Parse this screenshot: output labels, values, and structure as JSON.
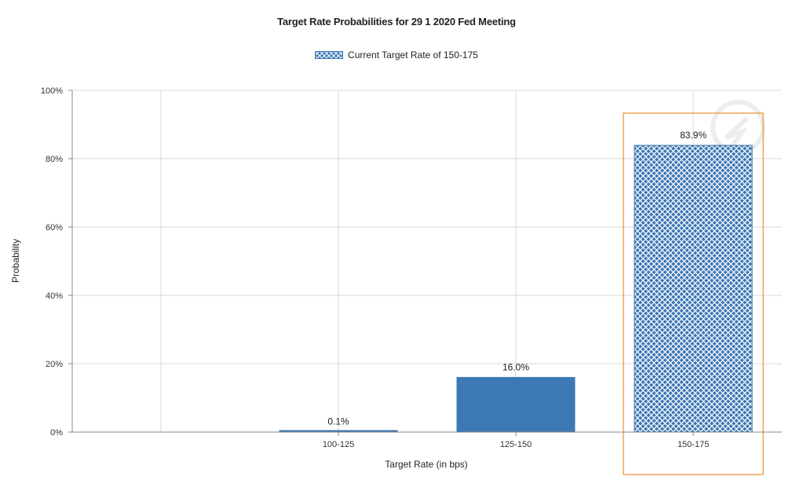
{
  "chart_data": {
    "type": "bar",
    "title": "Target Rate Probabilities for 29 1 2020 Fed Meeting",
    "legend": "Current Target Rate of 150-175",
    "xlabel": "Target Rate (in bps)",
    "ylabel": "Probability",
    "categories": [
      "100-125",
      "125-150",
      "150-175"
    ],
    "values": [
      0.1,
      16.0,
      83.9
    ],
    "value_labels": [
      "0.1%",
      "16.0%",
      "83.9%"
    ],
    "highlighted_category": "150-175",
    "ylim": [
      0,
      100
    ],
    "yticks": [
      "0%",
      "20%",
      "40%",
      "60%",
      "80%",
      "100%"
    ],
    "grid": true,
    "legend_position": "top-center",
    "colors": {
      "bar": "#3c78b4",
      "highlight_box": "#e8902a",
      "grid": "#d9d9d9"
    }
  }
}
